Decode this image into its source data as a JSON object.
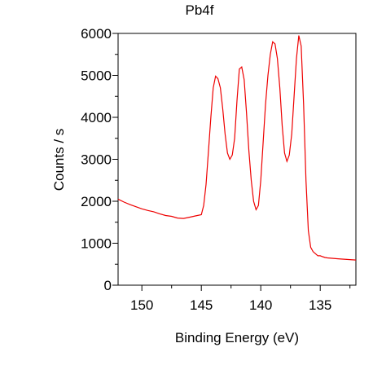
{
  "chart_data": {
    "type": "line",
    "title": "Pb4f",
    "xlabel": "Binding Energy (eV)",
    "ylabel": "Counts / s",
    "xlim": [
      152.0,
      132.0
    ],
    "ylim": [
      0,
      6000
    ],
    "x_reversed": true,
    "xticks": [
      150,
      145,
      140,
      135
    ],
    "yticks": [
      0,
      1000,
      2000,
      3000,
      4000,
      5000,
      6000
    ],
    "grid": false,
    "line_color": "#ee0000",
    "series": [
      {
        "x": [
          152.0,
          151.5,
          151.0,
          150.5,
          150.0,
          149.5,
          149.0,
          148.5,
          148.0,
          147.5,
          147.0,
          146.5,
          146.0,
          145.5,
          145.0,
          144.8,
          144.6,
          144.4,
          144.2,
          144.0,
          143.8,
          143.6,
          143.4,
          143.2,
          143.0,
          142.8,
          142.6,
          142.4,
          142.2,
          142.0,
          141.8,
          141.6,
          141.4,
          141.2,
          141.0,
          140.8,
          140.6,
          140.4,
          140.2,
          140.0,
          139.8,
          139.6,
          139.4,
          139.2,
          139.0,
          138.8,
          138.6,
          138.4,
          138.2,
          138.0,
          137.8,
          137.6,
          137.4,
          137.2,
          137.0,
          136.8,
          136.6,
          136.4,
          136.2,
          136.0,
          135.8,
          135.6,
          135.4,
          135.2,
          135.0,
          134.8,
          134.6,
          134.4,
          134.0,
          133.5,
          133.0,
          132.5,
          132.0
        ],
        "y": [
          2050,
          1980,
          1920,
          1870,
          1820,
          1780,
          1750,
          1700,
          1660,
          1640,
          1600,
          1590,
          1620,
          1650,
          1680,
          1900,
          2400,
          3200,
          4000,
          4700,
          4980,
          4920,
          4700,
          4200,
          3600,
          3150,
          3000,
          3100,
          3500,
          4400,
          5150,
          5200,
          4900,
          4100,
          3200,
          2500,
          2000,
          1800,
          1900,
          2500,
          3400,
          4300,
          5000,
          5500,
          5800,
          5750,
          5400,
          4700,
          3800,
          3150,
          2950,
          3100,
          3600,
          4500,
          5400,
          5950,
          5700,
          4300,
          2500,
          1300,
          900,
          800,
          750,
          700,
          700,
          680,
          660,
          650,
          640,
          630,
          620,
          610,
          600
        ]
      }
    ]
  }
}
